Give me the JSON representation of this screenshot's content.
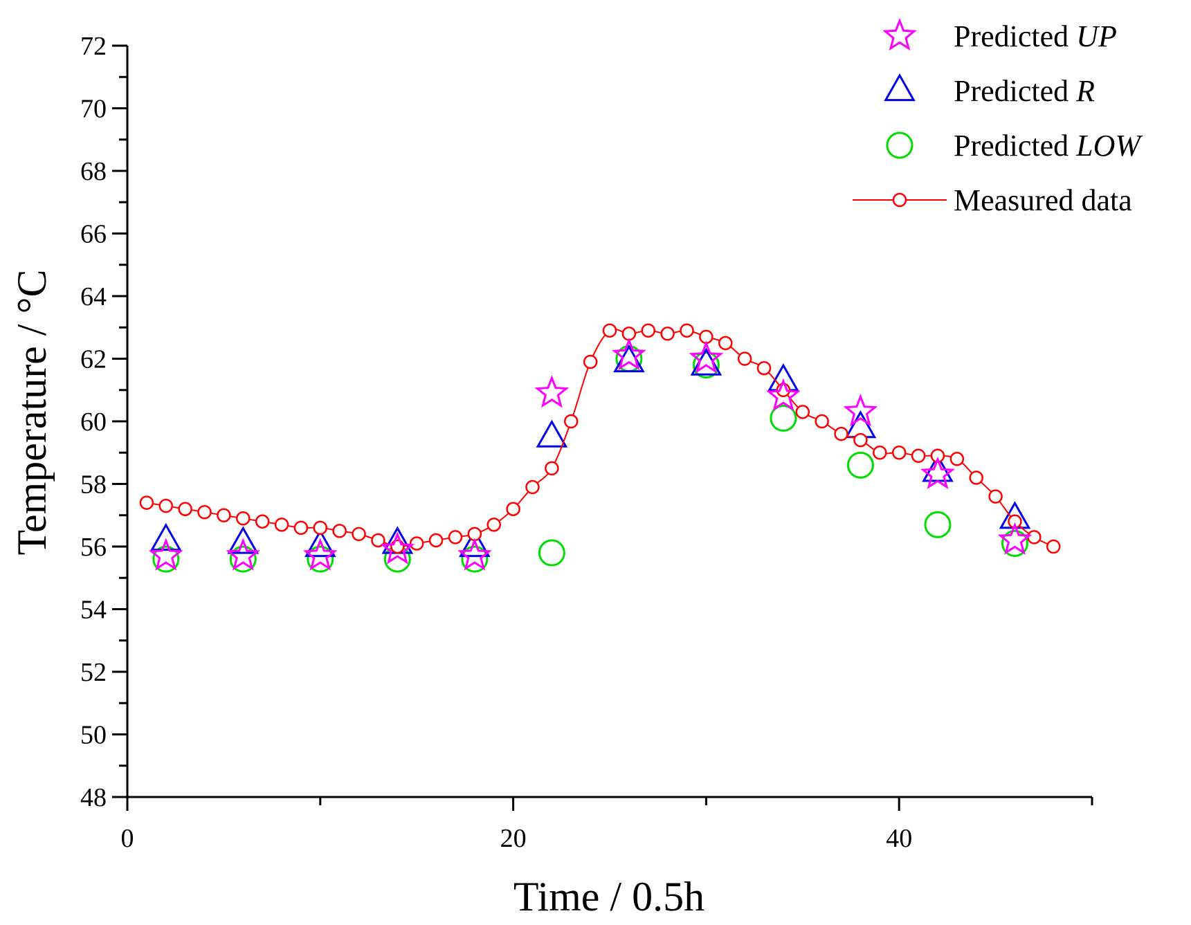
{
  "chart_data": {
    "type": "scatter",
    "title": "",
    "xlabel": "Time / 0.5h",
    "ylabel": "Temperature / °C",
    "xlim": [
      0,
      50
    ],
    "ylim": [
      48,
      72
    ],
    "x_ticks": [
      "0",
      "20",
      "40"
    ],
    "y_ticks": [
      "48",
      "50",
      "52",
      "54",
      "56",
      "58",
      "60",
      "62",
      "64",
      "66",
      "68",
      "70",
      "72"
    ],
    "grid": false,
    "legend_position": "top-right",
    "series": [
      {
        "name": "Predicted UP",
        "legend_prefix": "Predicted ",
        "legend_italic": "UP",
        "marker": "star",
        "color": "#ff00ff",
        "points": [
          [
            2,
            55.7
          ],
          [
            6,
            55.7
          ],
          [
            10,
            55.7
          ],
          [
            14,
            55.9
          ],
          [
            18,
            55.7
          ],
          [
            22,
            60.9
          ],
          [
            26,
            62.1
          ],
          [
            30,
            62.0
          ],
          [
            34,
            60.8
          ],
          [
            38,
            60.3
          ],
          [
            42,
            58.3
          ],
          [
            46,
            56.2
          ]
        ]
      },
      {
        "name": "Predicted R",
        "legend_prefix": "Predicted ",
        "legend_italic": "R",
        "marker": "triangle",
        "color": "#0000ee",
        "points": [
          [
            2,
            56.2
          ],
          [
            6,
            56.1
          ],
          [
            10,
            56.0
          ],
          [
            14,
            56.1
          ],
          [
            18,
            56.0
          ],
          [
            22,
            59.5
          ],
          [
            26,
            61.9
          ],
          [
            30,
            61.8
          ],
          [
            34,
            61.3
          ],
          [
            38,
            59.8
          ],
          [
            42,
            58.4
          ],
          [
            46,
            56.9
          ]
        ]
      },
      {
        "name": "Predicted LOW",
        "legend_prefix": "Predicted ",
        "legend_italic": "LOW",
        "marker": "circle",
        "color": "#00dd00",
        "points": [
          [
            2,
            55.6
          ],
          [
            6,
            55.6
          ],
          [
            10,
            55.6
          ],
          [
            14,
            55.6
          ],
          [
            18,
            55.6
          ],
          [
            22,
            55.8
          ],
          [
            26,
            62.0
          ],
          [
            30,
            61.8
          ],
          [
            34,
            60.1
          ],
          [
            38,
            58.6
          ],
          [
            42,
            56.7
          ],
          [
            46,
            56.1
          ]
        ]
      },
      {
        "name": "Measured data",
        "legend_prefix": "Measured data",
        "legend_italic": "",
        "marker": "small-circle-line",
        "color": "#ff0000",
        "points": [
          [
            1,
            57.4
          ],
          [
            2,
            57.3
          ],
          [
            3,
            57.2
          ],
          [
            4,
            57.1
          ],
          [
            5,
            57.0
          ],
          [
            6,
            56.9
          ],
          [
            7,
            56.8
          ],
          [
            8,
            56.7
          ],
          [
            9,
            56.6
          ],
          [
            10,
            56.6
          ],
          [
            11,
            56.5
          ],
          [
            12,
            56.4
          ],
          [
            13,
            56.2
          ],
          [
            14,
            56.0
          ],
          [
            15,
            56.1
          ],
          [
            16,
            56.2
          ],
          [
            17,
            56.3
          ],
          [
            18,
            56.4
          ],
          [
            19,
            56.7
          ],
          [
            20,
            57.2
          ],
          [
            21,
            57.9
          ],
          [
            22,
            58.5
          ],
          [
            23,
            60.0
          ],
          [
            24,
            61.9
          ],
          [
            25,
            62.9
          ],
          [
            26,
            62.8
          ],
          [
            27,
            62.9
          ],
          [
            28,
            62.8
          ],
          [
            29,
            62.9
          ],
          [
            30,
            62.7
          ],
          [
            31,
            62.5
          ],
          [
            32,
            62.0
          ],
          [
            33,
            61.7
          ],
          [
            34,
            61.0
          ],
          [
            35,
            60.3
          ],
          [
            36,
            60.0
          ],
          [
            37,
            59.6
          ],
          [
            38,
            59.4
          ],
          [
            39,
            59.0
          ],
          [
            40,
            59.0
          ],
          [
            41,
            58.9
          ],
          [
            42,
            58.9
          ],
          [
            43,
            58.8
          ],
          [
            44,
            58.2
          ],
          [
            45,
            57.6
          ],
          [
            46,
            56.8
          ],
          [
            47,
            56.3
          ],
          [
            48,
            56.0
          ]
        ]
      }
    ]
  }
}
